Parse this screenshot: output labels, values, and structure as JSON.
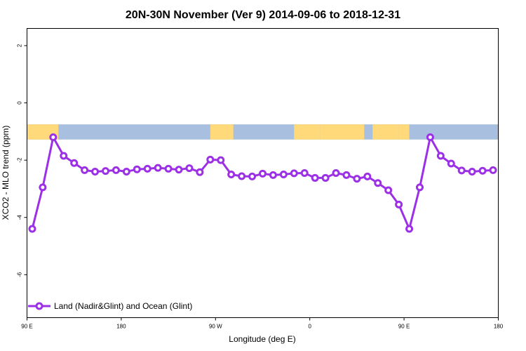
{
  "chart_data": {
    "type": "line",
    "title": "20N-30N November (Ver 9)   2014-09-06 to 2018-12-31",
    "xlabel": "Longitude (deg E)",
    "ylabel": "XCO2 - MLO trend (ppm)",
    "xlim": [
      90,
      540
    ],
    "ylim": [
      -7.5,
      2.6
    ],
    "x_ticks": [
      {
        "value": 90,
        "label": "90 E"
      },
      {
        "value": 180,
        "label": "180"
      },
      {
        "value": 270,
        "label": "90 W"
      },
      {
        "value": 360,
        "label": "0"
      },
      {
        "value": 450,
        "label": "90 E"
      },
      {
        "value": 540,
        "label": "180"
      }
    ],
    "y_ticks": [
      {
        "value": 2,
        "label": "2"
      },
      {
        "value": 0,
        "label": "0"
      },
      {
        "value": -2,
        "label": "-2"
      },
      {
        "value": -4,
        "label": "-4"
      },
      {
        "value": -6,
        "label": "-6"
      }
    ],
    "map_strip": {
      "y_top": -0.75,
      "y_bottom": -1.28,
      "ocean_color": "#a8bfe0",
      "land_color": "#ffd97a",
      "land_segments": [
        [
          90,
          120
        ],
        [
          265,
          287
        ],
        [
          345,
          370
        ],
        [
          370,
          412
        ],
        [
          420,
          445
        ],
        [
          445,
          455
        ]
      ]
    },
    "series": [
      {
        "name": "Land (Nadir&Glint) and Ocean (Glint)",
        "color": "#9b30e6",
        "x": [
          95,
          105,
          115,
          125,
          135,
          145,
          155,
          165,
          175,
          185,
          195,
          205,
          215,
          225,
          235,
          245,
          255,
          265,
          275,
          285,
          295,
          305,
          315,
          325,
          335,
          345,
          355,
          365,
          375,
          385,
          395,
          405,
          415,
          425,
          435,
          445,
          455,
          465,
          475,
          485,
          495,
          505,
          515,
          525,
          535
        ],
        "y": [
          -4.4,
          -2.95,
          -1.2,
          -1.85,
          -2.1,
          -2.35,
          -2.4,
          -2.38,
          -2.35,
          -2.4,
          -2.32,
          -2.3,
          -2.27,
          -2.3,
          -2.33,
          -2.28,
          -2.42,
          -1.98,
          -2.0,
          -2.5,
          -2.56,
          -2.57,
          -2.47,
          -2.52,
          -2.5,
          -2.46,
          -2.45,
          -2.62,
          -2.62,
          -2.45,
          -2.52,
          -2.65,
          -2.57,
          -2.8,
          -3.05,
          -3.55,
          -4.4,
          -2.95,
          -1.2,
          -1.85,
          -2.12,
          -2.36,
          -2.4,
          -2.37,
          -2.35
        ]
      }
    ],
    "legend_position": "bottom-left"
  }
}
